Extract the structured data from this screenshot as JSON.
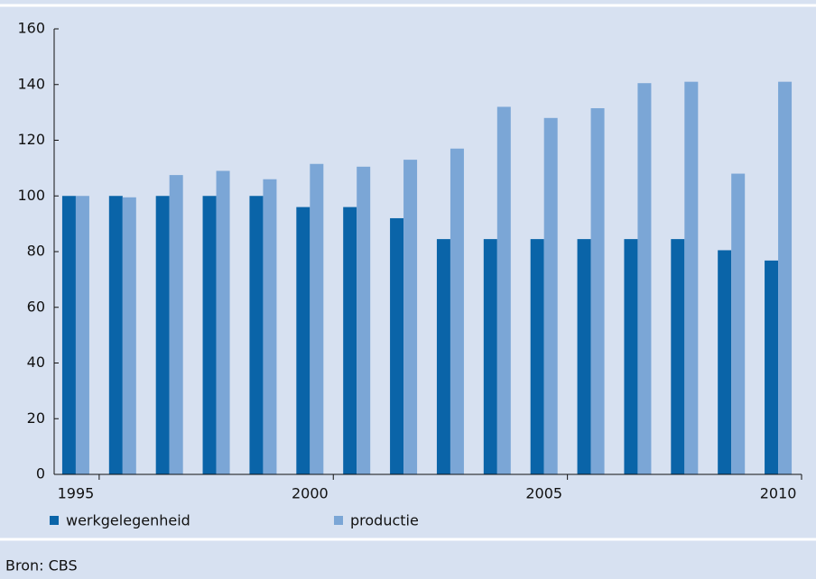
{
  "chart_data": {
    "type": "bar",
    "categories": [
      "1995",
      null,
      null,
      null,
      null,
      "2000",
      null,
      null,
      null,
      null,
      "2005",
      null,
      null,
      null,
      null,
      "2010"
    ],
    "series": [
      {
        "name": "werkgelegenheid",
        "color": "#0a64a8",
        "values": [
          100,
          100,
          100,
          100,
          100,
          96,
          96,
          92,
          84.5,
          84.5,
          84.5,
          84.5,
          84.5,
          84.5,
          80.5,
          76.8
        ]
      },
      {
        "name": "productie",
        "color": "#7ba6d6",
        "values": [
          100,
          99.5,
          107.5,
          109,
          106,
          111.5,
          110.5,
          113,
          117,
          132,
          128,
          131.5,
          140.5,
          141,
          108,
          141
        ]
      }
    ],
    "ylim": [
      0,
      160
    ],
    "yticks": [
      0,
      20,
      40,
      60,
      80,
      100,
      120,
      140,
      160
    ],
    "source": "Bron: CBS"
  }
}
